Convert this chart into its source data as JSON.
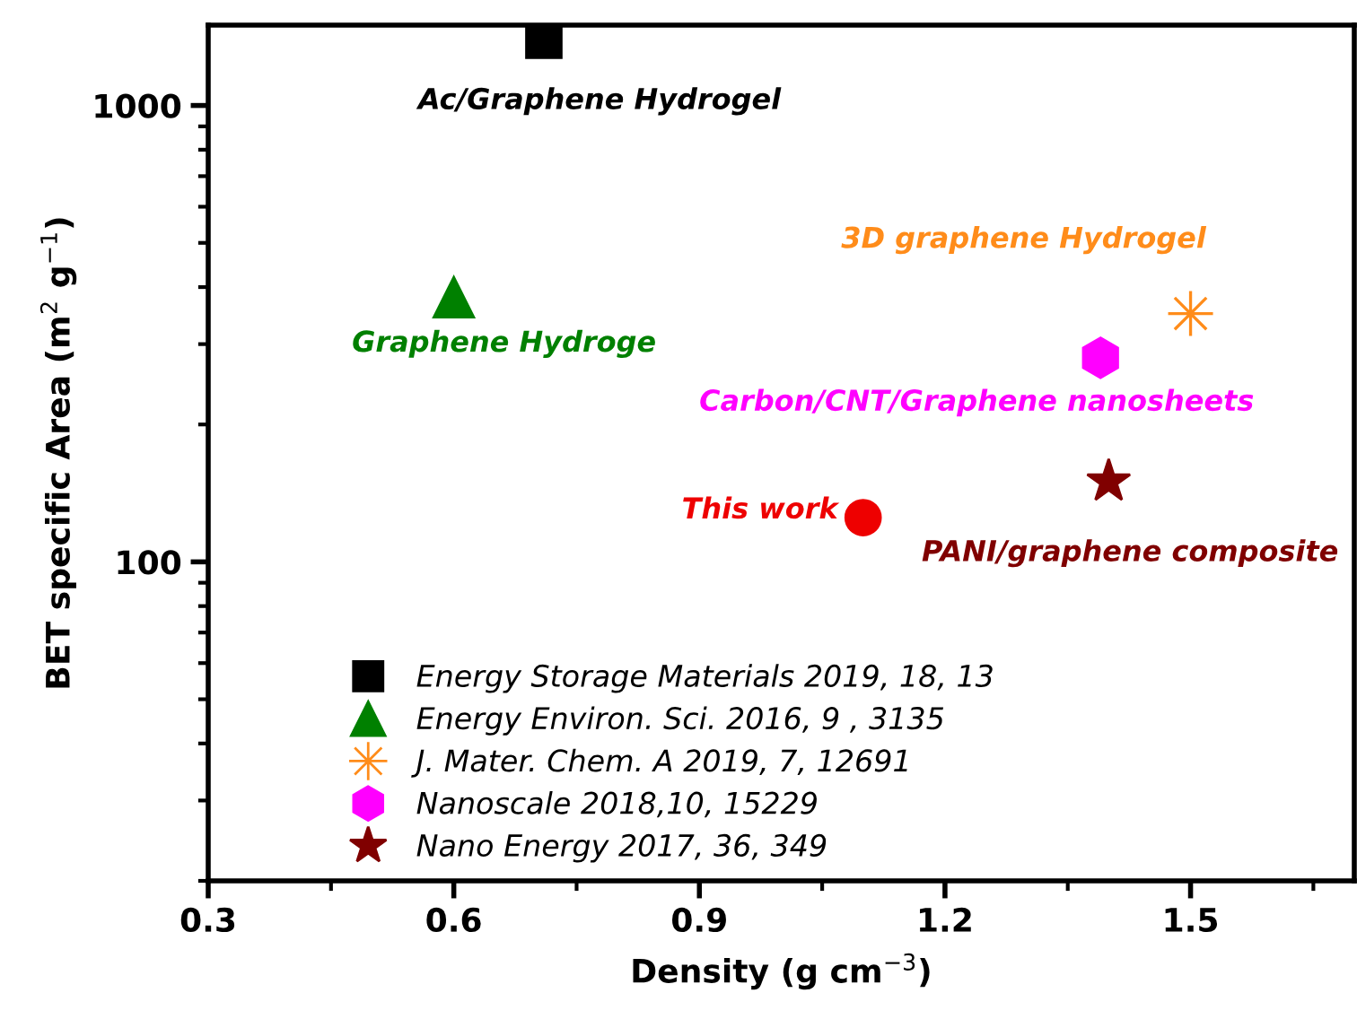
{
  "chart_data": {
    "type": "scatter",
    "xlabel": "Density (g cm$^{−3}$)",
    "ylabel": "BET specific Area (m$^{2}$ g$^{−1}$)",
    "xlim": [
      0.3,
      1.7
    ],
    "xticks": [
      0.3,
      0.6,
      0.9,
      1.2,
      1.5
    ],
    "ylim": [
      20,
      1500
    ],
    "yticks": [
      100,
      1000
    ],
    "log": "y",
    "grid": false,
    "legend": "bottom left",
    "series": [
      {
        "name": "Energy Storage Materials 2019, 18, 13",
        "color": "#000000",
        "marker": "square",
        "x": [
          0.71
        ],
        "values": [
          1390
        ]
      },
      {
        "name": "Energy Environ. Sci. 2016, 9 , 3135",
        "color": "#008000",
        "marker": "triangle",
        "x": [
          0.6
        ],
        "values": [
          380
        ]
      },
      {
        "name": "J. Mater. Chem. A 2019, 7, 12691",
        "color": "#ff8c1a",
        "marker": "asterisk",
        "x": [
          1.5
        ],
        "values": [
          350
        ]
      },
      {
        "name": "Nanoscale 2018,10, 15229",
        "color": "#ff00ff",
        "x": [
          1.39
        ],
        "values": [
          280
        ]
      },
      {
        "name": "Nano Energy 2017, 36, 349",
        "color": "#800000",
        "marker": "star",
        "x": [
          1.4
        ],
        "values": [
          150
        ]
      },
      {
        "color": "#ee0000",
        "marker": "circle",
        "x": [
          1.1
        ],
        "values": [
          125
        ]
      }
    ],
    "annotations": [
      {
        "text": "Ac/Graphene Hydrogel",
        "x": 0.71,
        "y": 1390
      },
      {
        "text": "Graphene Hydroge",
        "x": 0.6,
        "y": 380
      },
      {
        "text": "3D graphene Hydrogel",
        "x": 1.5,
        "y": 350
      },
      {
        "text": "Carbon/CNT/Graphene nanosheets",
        "x": 1.39,
        "y": 280
      },
      {
        "text": "PANI/graphene composite",
        "x": 1.4,
        "y": 150
      },
      {
        "text": "This work",
        "x": 1.1,
        "y": 125
      }
    ]
  }
}
